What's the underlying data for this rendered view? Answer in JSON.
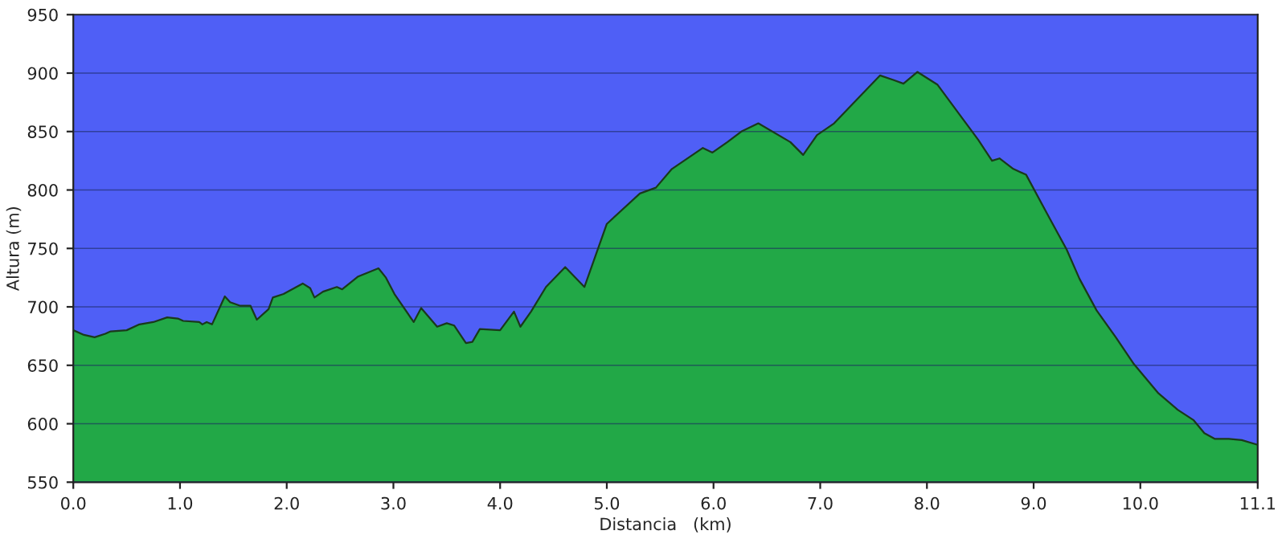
{
  "chart_data": {
    "type": "area",
    "xlabel": "Distancia   (km)",
    "ylabel": "Altura (m)",
    "xlim": [
      0,
      11.1
    ],
    "ylim": [
      550,
      950
    ],
    "xticks": [
      {
        "value": 0,
        "label": "0.0"
      },
      {
        "value": 1,
        "label": "1.0"
      },
      {
        "value": 2,
        "label": "2.0"
      },
      {
        "value": 3,
        "label": "3.0"
      },
      {
        "value": 4,
        "label": "4.0"
      },
      {
        "value": 5,
        "label": "5.0"
      },
      {
        "value": 6,
        "label": "6.0"
      },
      {
        "value": 7,
        "label": "7.0"
      },
      {
        "value": 8,
        "label": "8.0"
      },
      {
        "value": 9,
        "label": "9.0"
      },
      {
        "value": 10,
        "label": "10.0"
      },
      {
        "value": 11.1,
        "label": "11.1"
      }
    ],
    "yticks": [
      550,
      600,
      650,
      700,
      750,
      800,
      850,
      900,
      950
    ],
    "grid": "y",
    "series": [
      {
        "color": "#22a847",
        "x": [
          0,
          0.1,
          0.2,
          0.3,
          0.35,
          0.5,
          0.62,
          0.75,
          0.88,
          0.98,
          1.03,
          1.18,
          1.21,
          1.25,
          1.3,
          1.42,
          1.47,
          1.56,
          1.66,
          1.72,
          1.83,
          1.87,
          1.97,
          2.15,
          2.22,
          2.26,
          2.34,
          2.47,
          2.52,
          2.67,
          2.86,
          2.93,
          3.01,
          3.19,
          3.26,
          3.41,
          3.5,
          3.57,
          3.68,
          3.74,
          3.81,
          4.0,
          4.13,
          4.19,
          4.29,
          4.43,
          4.61,
          4.79,
          5.0,
          5.31,
          5.46,
          5.61,
          5.9,
          5.99,
          6.13,
          6.26,
          6.42,
          6.72,
          6.84,
          6.97,
          7.13,
          7.35,
          7.56,
          7.69,
          7.78,
          7.91,
          8.1,
          8.31,
          8.48,
          8.61,
          8.68,
          8.81,
          8.93,
          9.16,
          9.31,
          9.43,
          9.59,
          9.77,
          9.94,
          10.17,
          10.35,
          10.5,
          10.6,
          10.7,
          10.83,
          10.95,
          11.1
        ],
        "values": [
          680,
          676,
          674,
          677,
          679,
          680,
          685,
          687,
          691,
          690,
          688,
          687,
          685,
          687,
          685,
          709,
          704,
          701,
          701,
          689,
          698,
          708,
          711,
          720,
          716,
          708,
          713,
          717,
          715,
          726,
          733,
          725,
          711,
          687,
          699,
          683,
          686,
          684,
          669,
          670,
          681,
          680,
          696,
          683,
          696,
          717,
          734,
          717,
          771,
          797,
          802,
          818,
          836,
          832,
          841,
          850,
          857,
          841,
          830,
          847,
          857,
          878,
          898,
          894,
          891,
          901,
          890,
          864,
          843,
          825,
          827,
          818,
          813,
          774,
          749,
          724,
          697,
          674,
          651,
          626,
          612,
          603,
          592,
          587,
          587,
          586,
          582
        ]
      }
    ]
  }
}
